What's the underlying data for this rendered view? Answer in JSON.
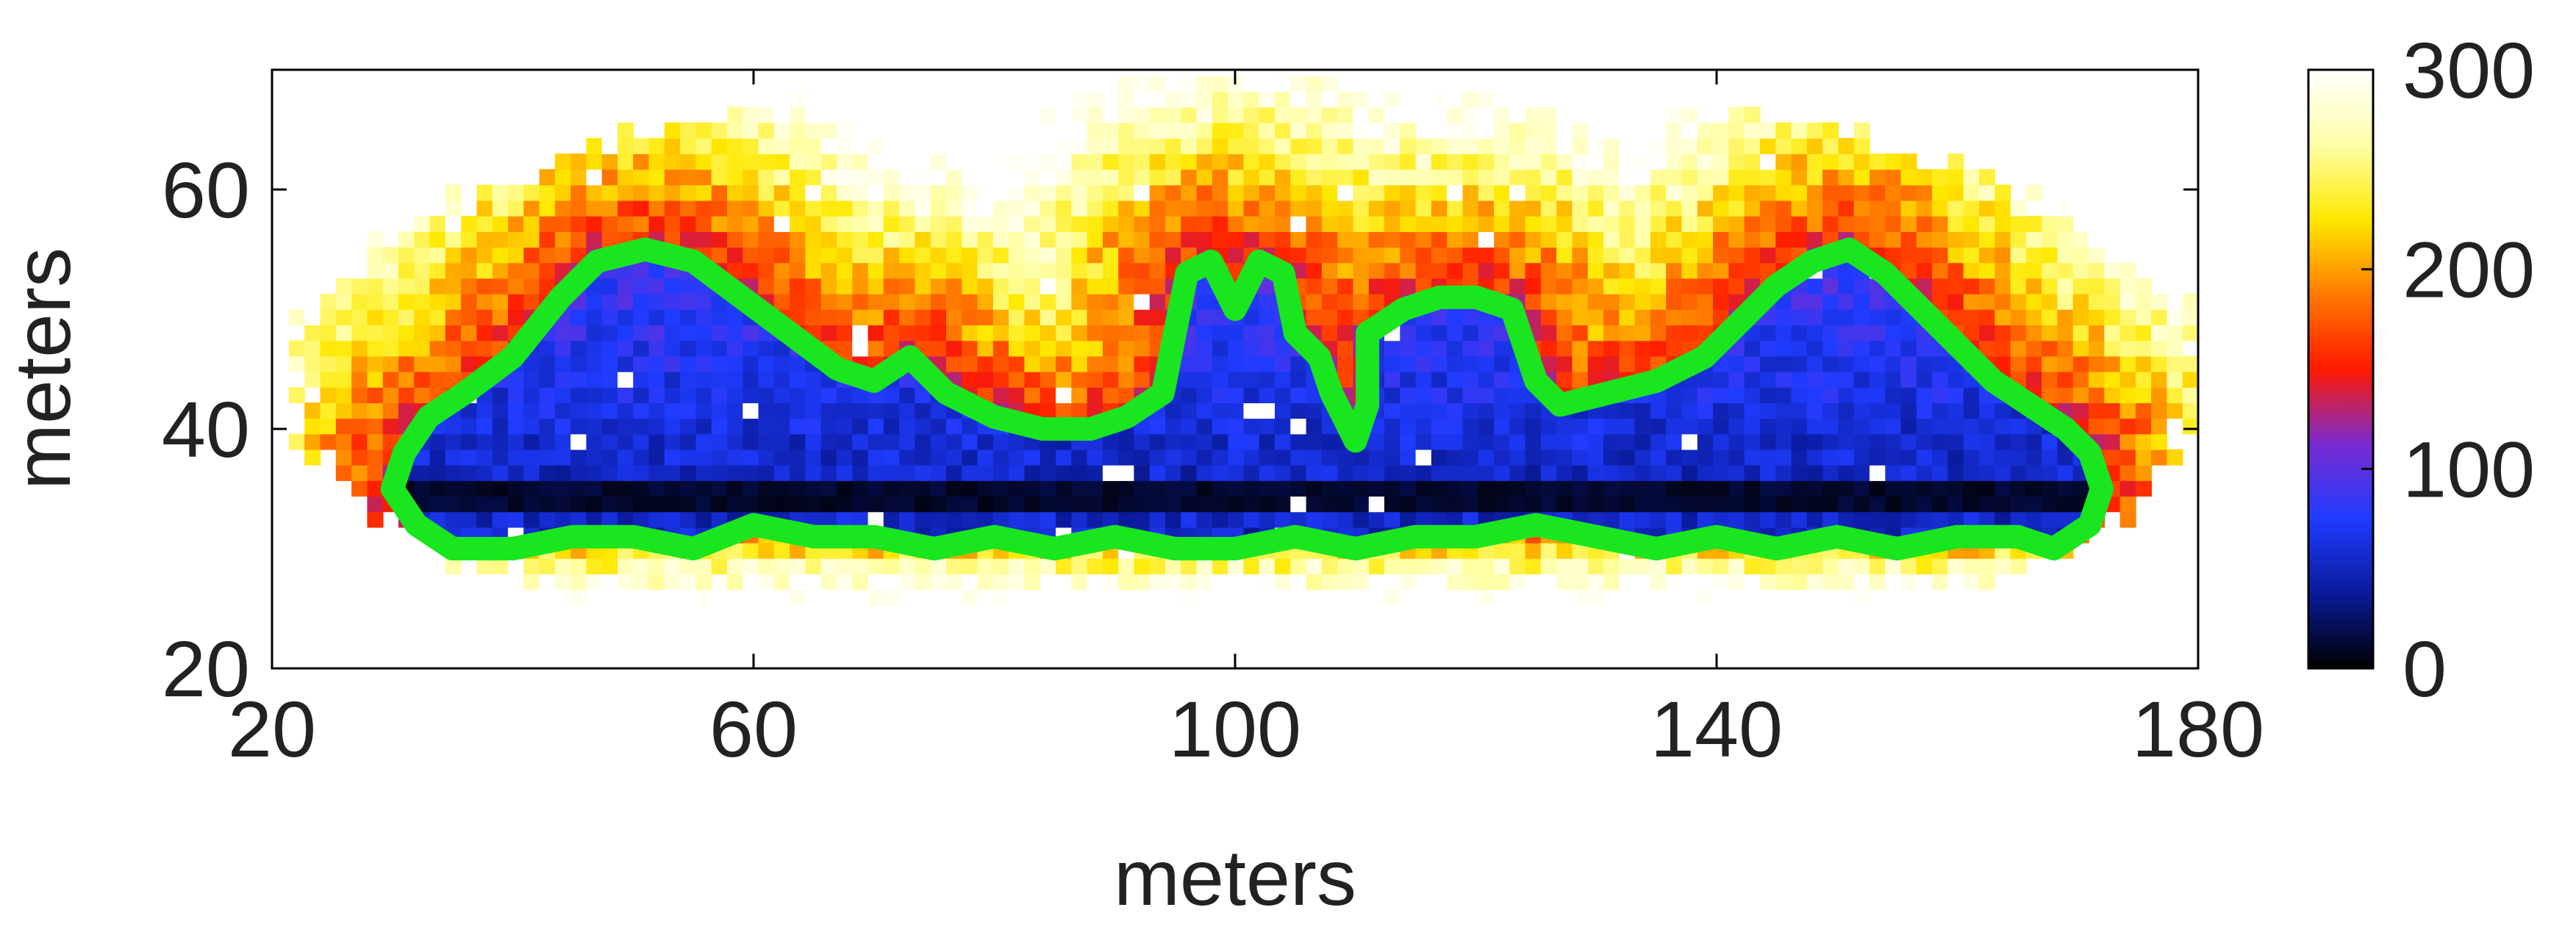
{
  "chart_data": {
    "type": "heatmap",
    "title": "",
    "xlabel": "meters",
    "ylabel": "meters",
    "xlim": [
      20,
      180
    ],
    "ylim": [
      20,
      70
    ],
    "xticks": [
      "20",
      "60",
      "100",
      "140",
      "180"
    ],
    "yticks": [
      "20",
      "40",
      "60"
    ],
    "grid": false,
    "colorbar": {
      "colormap": "hot-to-blue (black → blue → red → yellow → white)",
      "range": [
        0,
        300
      ],
      "ticks": [
        "0",
        "100",
        "200",
        "300"
      ],
      "colors": [
        "#000000",
        "#0a1a9a",
        "#1f3cff",
        "#7a2bd0",
        "#ff1a00",
        "#ff7a00",
        "#ffe800",
        "#ffffa8",
        "#ffffff"
      ]
    },
    "contour": {
      "color": "#19e61e",
      "outline": [
        [
          30,
          35
        ],
        [
          31,
          38
        ],
        [
          33,
          41
        ],
        [
          36,
          43
        ],
        [
          40,
          46
        ],
        [
          44,
          51
        ],
        [
          47,
          54
        ],
        [
          51,
          55
        ],
        [
          55,
          54
        ],
        [
          59,
          51
        ],
        [
          63,
          48
        ],
        [
          67,
          45
        ],
        [
          70,
          44
        ],
        [
          73,
          46
        ],
        [
          76,
          43
        ],
        [
          80,
          41
        ],
        [
          84,
          40
        ],
        [
          88,
          40
        ],
        [
          91,
          41
        ],
        [
          94,
          43
        ],
        [
          95,
          48
        ],
        [
          96,
          53
        ],
        [
          98,
          54
        ],
        [
          100,
          50
        ],
        [
          102,
          54
        ],
        [
          104,
          53
        ],
        [
          105,
          48
        ],
        [
          107,
          46
        ],
        [
          108,
          43
        ],
        [
          110,
          39
        ],
        [
          111,
          42
        ],
        [
          111,
          48
        ],
        [
          114,
          50
        ],
        [
          117,
          51
        ],
        [
          120,
          51
        ],
        [
          123,
          50
        ],
        [
          124,
          47
        ],
        [
          125,
          44
        ],
        [
          127,
          42
        ],
        [
          131,
          43
        ],
        [
          135,
          44
        ],
        [
          139,
          46
        ],
        [
          142,
          49
        ],
        [
          145,
          52
        ],
        [
          148,
          54
        ],
        [
          151,
          55
        ],
        [
          154,
          53
        ],
        [
          157,
          50
        ],
        [
          160,
          47
        ],
        [
          163,
          44
        ],
        [
          166,
          42
        ],
        [
          169,
          40
        ],
        [
          171,
          38
        ],
        [
          172,
          35
        ],
        [
          171,
          32
        ],
        [
          168,
          30
        ],
        [
          165,
          31
        ],
        [
          160,
          31
        ],
        [
          155,
          30
        ],
        [
          150,
          31
        ],
        [
          145,
          30
        ],
        [
          140,
          31
        ],
        [
          135,
          30
        ],
        [
          130,
          31
        ],
        [
          125,
          32
        ],
        [
          120,
          31
        ],
        [
          115,
          31
        ],
        [
          110,
          30
        ],
        [
          105,
          31
        ],
        [
          100,
          30
        ],
        [
          95,
          30
        ],
        [
          90,
          31
        ],
        [
          85,
          30
        ],
        [
          80,
          31
        ],
        [
          75,
          30
        ],
        [
          70,
          31
        ],
        [
          65,
          31
        ],
        [
          60,
          32
        ],
        [
          55,
          30
        ],
        [
          50,
          31
        ],
        [
          45,
          31
        ],
        [
          40,
          30
        ],
        [
          35,
          30
        ],
        [
          32,
          32
        ],
        [
          30,
          35
        ]
      ]
    }
  }
}
